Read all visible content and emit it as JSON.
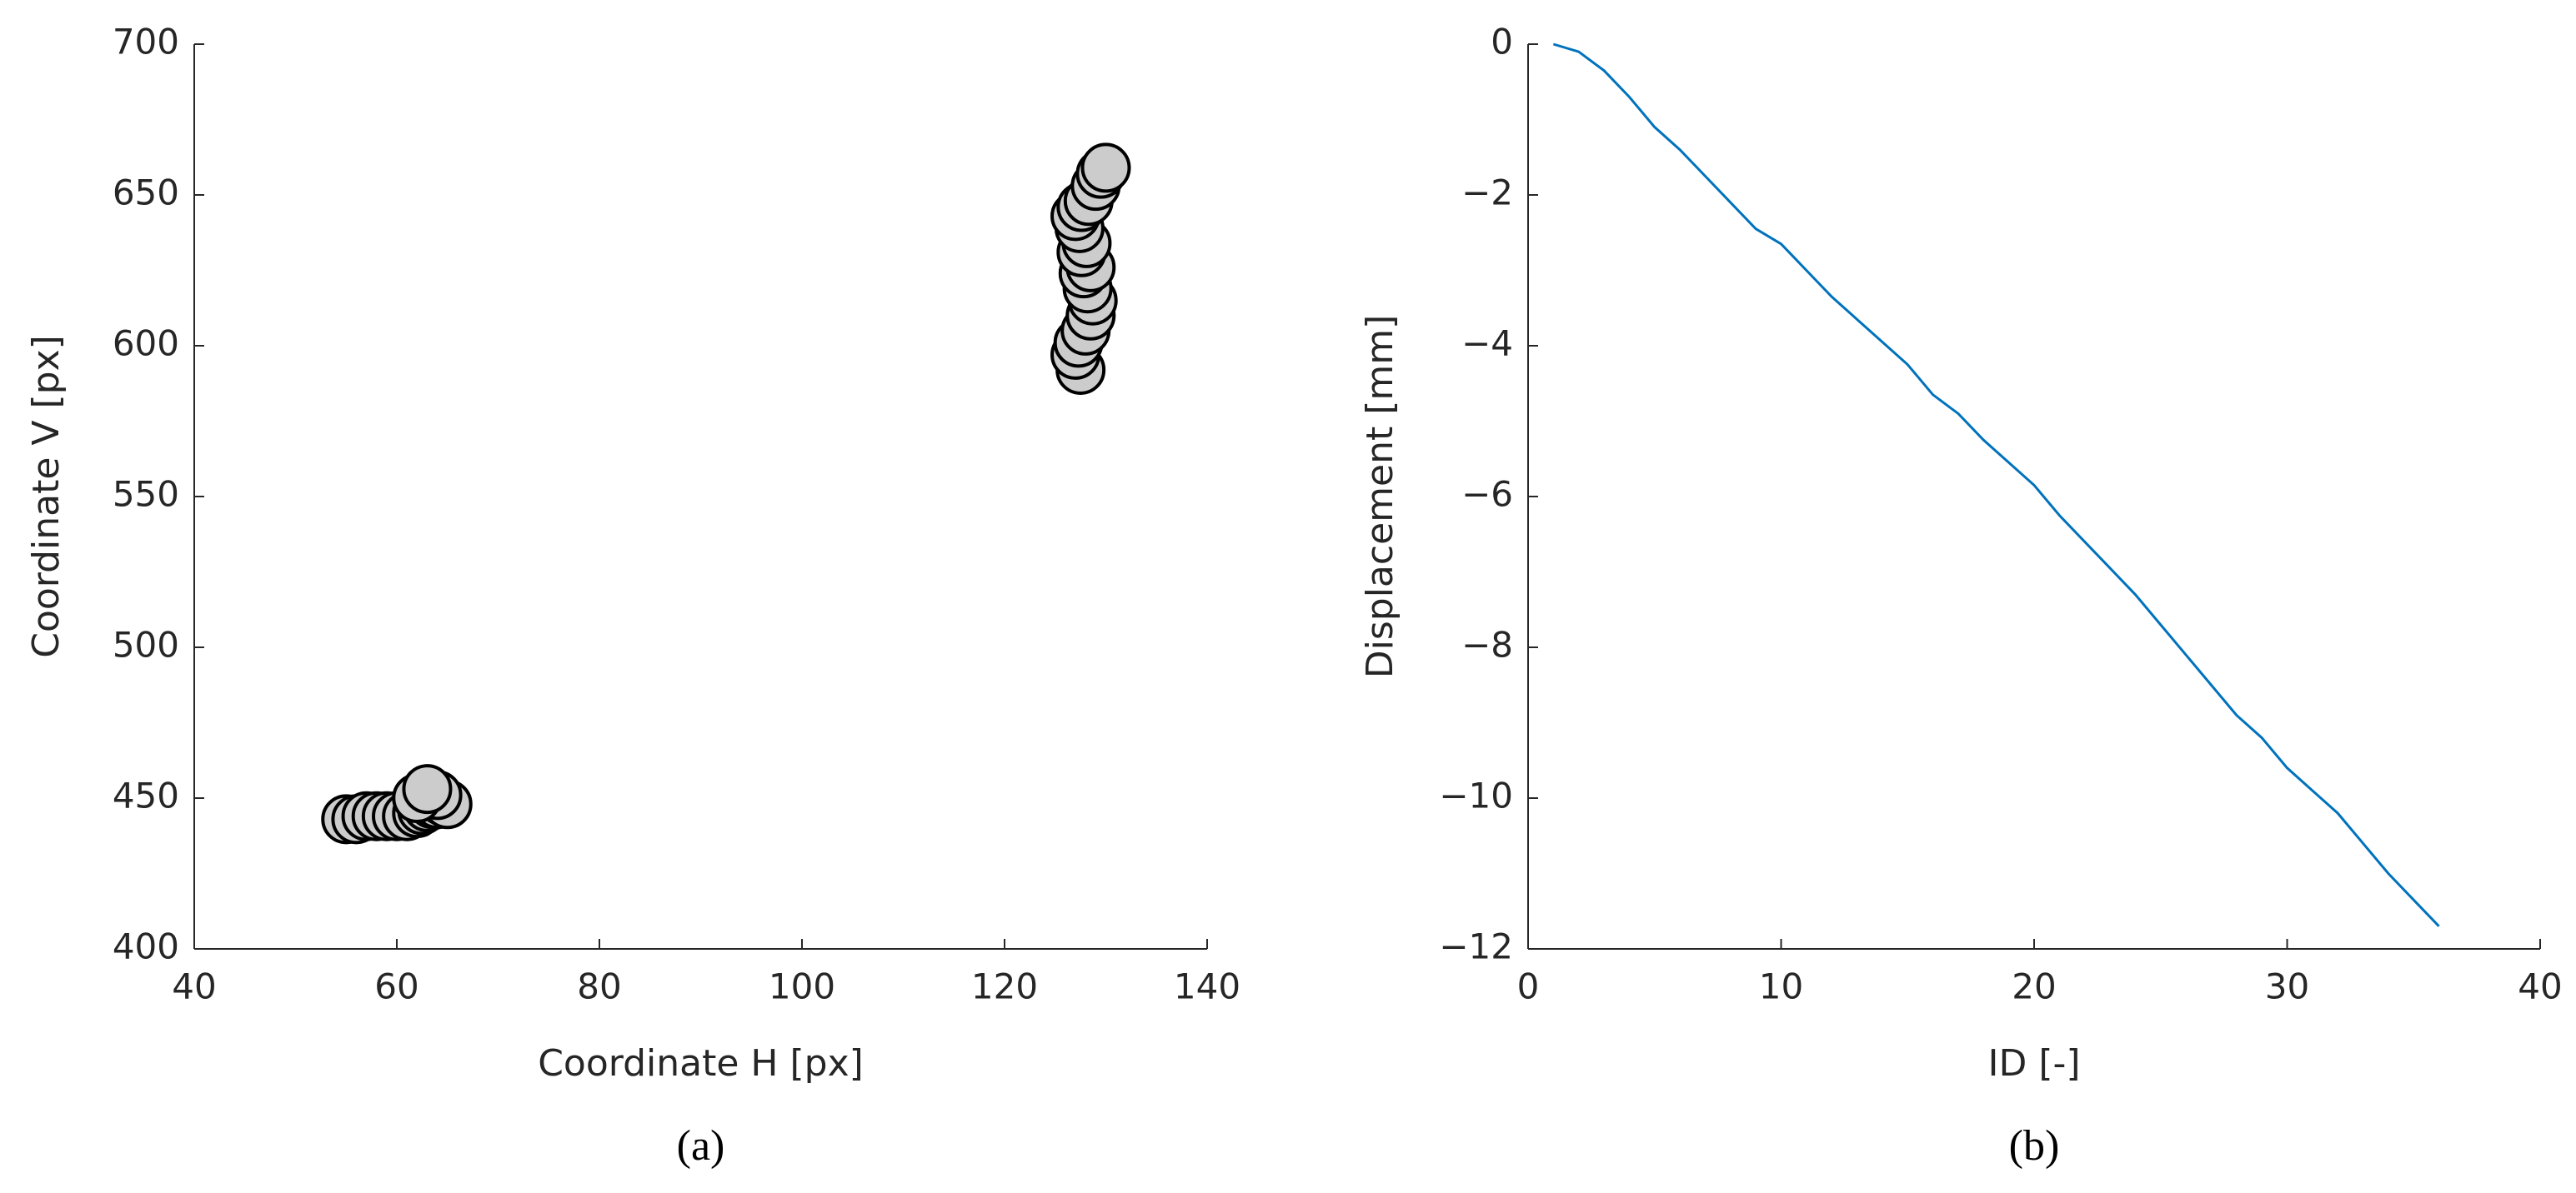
{
  "chart_data": [
    {
      "type": "scatter",
      "caption": "(a)",
      "x_label": "Coordinate H [px]",
      "y_label": "Coordinate V [px]",
      "xlim": [
        40,
        140
      ],
      "xticks": [
        40,
        60,
        80,
        100,
        120,
        140
      ],
      "ylim": [
        400,
        700
      ],
      "yticks": [
        400,
        450,
        500,
        550,
        600,
        650,
        700
      ],
      "color": "#cccccc",
      "edge_color": "#000000",
      "x": [
        55,
        56,
        57,
        58,
        59,
        60,
        61,
        62,
        62.5,
        63,
        63.5,
        64,
        64.5,
        65,
        63,
        64,
        62,
        63,
        127.5,
        127,
        127.3,
        128,
        128.5,
        128.7,
        128.2,
        127.8,
        128.5,
        127.6,
        128.1,
        127.4,
        127,
        127.6,
        128.3,
        129,
        129.5,
        130
      ],
      "values": [
        443,
        443,
        444,
        444,
        444,
        444,
        444,
        445,
        446,
        447,
        448,
        448,
        449,
        448,
        452,
        451,
        450,
        453,
        592,
        597,
        601,
        605,
        610,
        615,
        619,
        624,
        626,
        631,
        634,
        639,
        643,
        646,
        648,
        653,
        657,
        659
      ]
    },
    {
      "type": "line",
      "caption": "(b)",
      "x_label": "ID [-]",
      "y_label": "Displacement [mm]",
      "xlim": [
        0,
        40
      ],
      "xticks": [
        0,
        10,
        20,
        30,
        40
      ],
      "ylim": [
        -12,
        0
      ],
      "yticks": [
        {
          "value": -12,
          "label": "−12"
        },
        {
          "value": -10,
          "label": "−10"
        },
        {
          "value": -8,
          "label": "−8"
        },
        {
          "value": -6,
          "label": "−6"
        },
        {
          "value": -4,
          "label": "−4"
        },
        {
          "value": -2,
          "label": "−2"
        },
        0
      ],
      "color": "#0072bd",
      "x": [
        1,
        2,
        3,
        4,
        5,
        6,
        7,
        8,
        9,
        10,
        11,
        12,
        13,
        14,
        15,
        16,
        17,
        18,
        19,
        20,
        21,
        22,
        23,
        24,
        25,
        26,
        27,
        28,
        29,
        30,
        31,
        32,
        33,
        34,
        35,
        36
      ],
      "values": [
        0,
        -0.1,
        -0.35,
        -0.7,
        -1.1,
        -1.4,
        -1.75,
        -2.1,
        -2.45,
        -2.65,
        -3.0,
        -3.35,
        -3.65,
        -3.95,
        -4.25,
        -4.65,
        -4.9,
        -5.25,
        -5.55,
        -5.85,
        -6.25,
        -6.6,
        -6.95,
        -7.3,
        -7.7,
        -8.1,
        -8.5,
        -8.9,
        -9.2,
        -9.6,
        -9.9,
        -10.2,
        -10.6,
        -11.0,
        -11.35,
        -11.7
      ]
    }
  ]
}
